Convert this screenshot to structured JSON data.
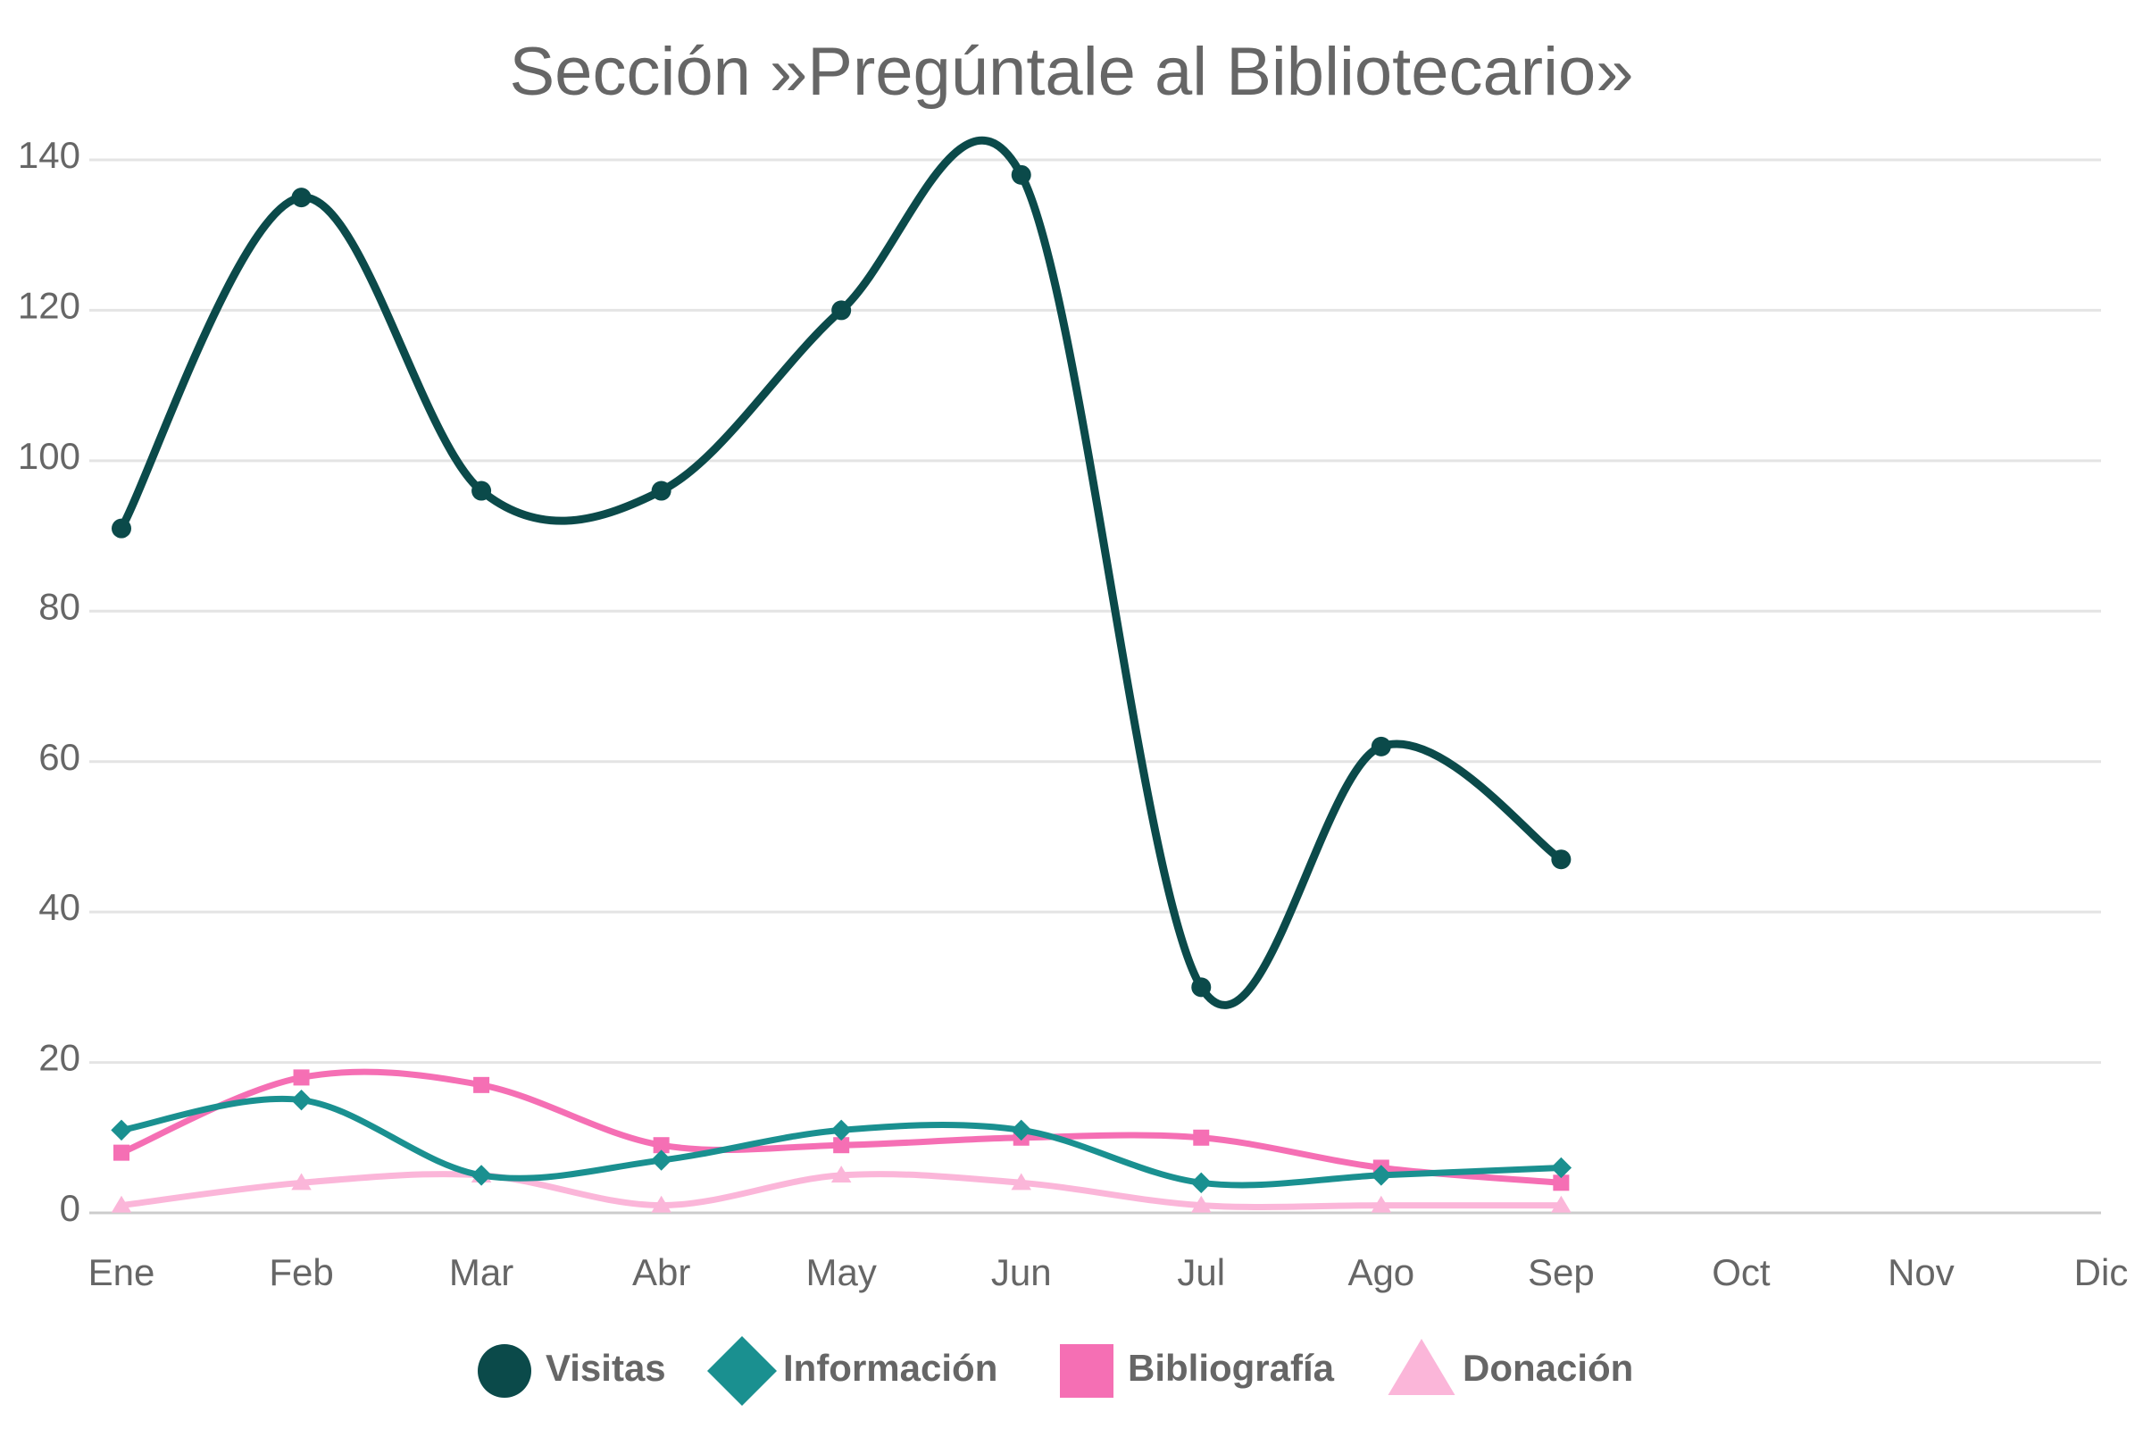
{
  "chart_data": {
    "type": "line",
    "title": "Sección »Pregúntale al Bibliotecario»",
    "categories": [
      "Ene",
      "Feb",
      "Mar",
      "Abr",
      "May",
      "Jun",
      "Jul",
      "Ago",
      "Sep",
      "Oct",
      "Nov",
      "Dic"
    ],
    "series": [
      {
        "name": "Visitas",
        "color": "#0b4a4a",
        "marker": "circle",
        "values": [
          91,
          135,
          96,
          96,
          120,
          138,
          30,
          62,
          47,
          null,
          null,
          null
        ]
      },
      {
        "name": "Información",
        "color": "#1a9090",
        "marker": "diamond",
        "values": [
          11,
          15,
          5,
          7,
          11,
          11,
          4,
          5,
          6,
          null,
          null,
          null
        ]
      },
      {
        "name": "Bibliografía",
        "color": "#f56fb4",
        "marker": "square",
        "values": [
          8,
          18,
          17,
          9,
          9,
          10,
          10,
          6,
          4,
          null,
          null,
          null
        ]
      },
      {
        "name": "Donación",
        "color": "#fbb6d9",
        "marker": "triangle",
        "values": [
          1,
          4,
          5,
          1,
          5,
          4,
          1,
          1,
          1,
          null,
          null,
          null
        ]
      }
    ],
    "ylim": [
      0,
      140
    ],
    "yticks": [
      0,
      20,
      40,
      60,
      80,
      100,
      120,
      140
    ],
    "grid": true,
    "smooth": true,
    "legend": "bottom"
  }
}
